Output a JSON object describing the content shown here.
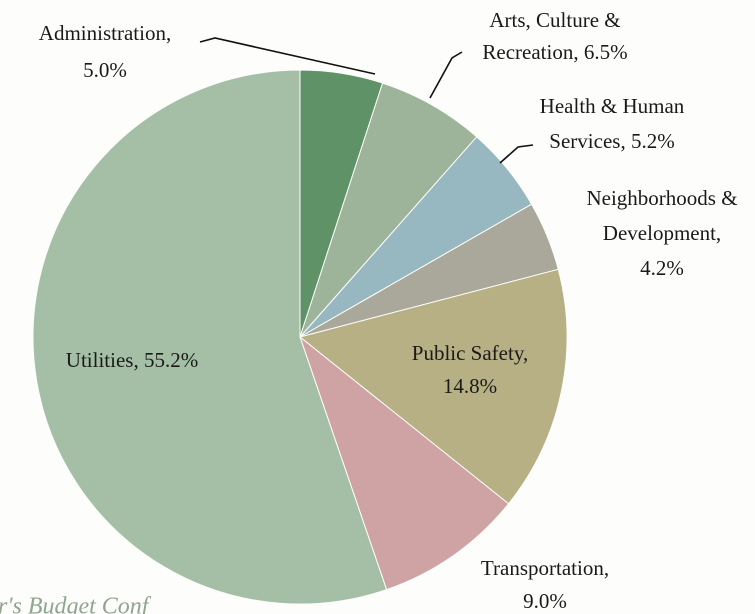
{
  "chart_data": {
    "type": "pie",
    "labels": [
      [
        "Administration,",
        "5.0%"
      ],
      [
        "Arts, Culture &",
        "Recreation, 6.5%"
      ],
      [
        "Health & Human",
        "Services, 5.2%"
      ],
      [
        "Neighborhoods &",
        "Development,",
        "4.2%"
      ],
      [
        "Public Safety,",
        "14.8%"
      ],
      [
        "Transportation,",
        "9.0%"
      ],
      [
        "Utilities, 55.2%"
      ]
    ],
    "values": [
      5.0,
      6.5,
      5.2,
      4.2,
      14.8,
      9.0,
      55.2
    ],
    "colors": [
      "#5f9367",
      "#9db49b",
      "#97b8c0",
      "#aaa89a",
      "#b6b084",
      "#cfa3a4",
      "#a4bfa5"
    ],
    "start_angle": 90,
    "direction": "clockwise",
    "footer": "r's Budget Conf"
  }
}
